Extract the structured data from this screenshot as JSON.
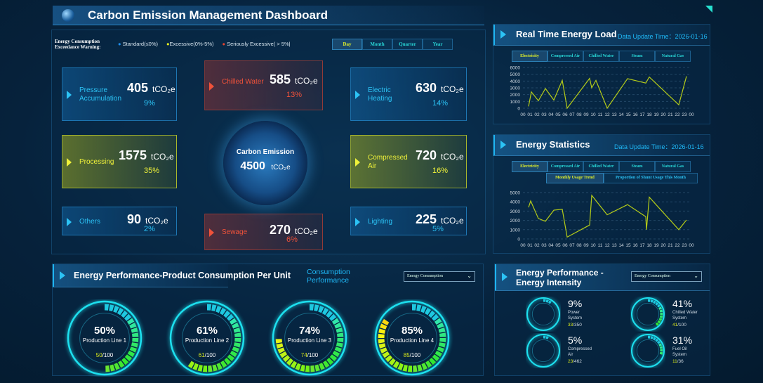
{
  "title": "Carbon Emission Management Dashboard",
  "warning": {
    "label_line1": "Energy Consumption",
    "label_line2": "Exceedance Warning:",
    "legend": [
      {
        "label": "Standard(≤0%)",
        "color": "#1e8ff0"
      },
      {
        "label": "Excessive(0%-5%)",
        "color": "#e8f01e"
      },
      {
        "label": "Seriously Excessive( > 5%|",
        "color": "#e8432e"
      }
    ]
  },
  "period_tabs": [
    {
      "label": "Day",
      "active": true
    },
    {
      "label": "Month"
    },
    {
      "label": "Quarter"
    },
    {
      "label": "Year"
    }
  ],
  "kpis": [
    {
      "label": "Pressure Accumulation",
      "value": "405",
      "unit": "tCO₂e",
      "pct": "9%",
      "status": "standard"
    },
    {
      "label": "Chilled Water",
      "value": "585",
      "unit": "tCO₂e",
      "pct": "13%",
      "status": "serious"
    },
    {
      "label": "Electric Heating",
      "value": "630",
      "unit": "tCO₂e",
      "pct": "14%",
      "status": "standard"
    },
    {
      "label": "Processing",
      "value": "1575",
      "unit": "tCO₂e",
      "pct": "35%",
      "status": "excessive"
    },
    {
      "label": "Compressed Air",
      "value": "720",
      "unit": "tCO₂e",
      "pct": "16%",
      "status": "excessive"
    },
    {
      "label": "Others",
      "value": "90",
      "unit": "tCO₂e",
      "pct": "2%",
      "status": "standard"
    },
    {
      "label": "Sewage",
      "value": "270",
      "unit": "tCO₂e",
      "pct": "6%",
      "status": "serious"
    },
    {
      "label": "Lighting",
      "value": "225",
      "unit": "tCO₂e",
      "pct": "5%",
      "status": "standard"
    }
  ],
  "center": {
    "label": "Carbon Emission",
    "value": "4500",
    "unit": "tCO₂e"
  },
  "energy_tabs": [
    "Electricity",
    "Compressed Air",
    "Chilled Water",
    "Steam",
    "Natural Gas"
  ],
  "realtime": {
    "title": "Real Time Energy Load",
    "update": "Data Update Time：2026-01-16"
  },
  "stats": {
    "title": "Energy Statistics",
    "update": "Data Update Time：2026-01-16",
    "subtabs": [
      "Monthly Usage Trend",
      "Proportion of Shunt Usage This Month"
    ]
  },
  "chart_data": [
    {
      "type": "line",
      "x_ticks": [
        "00",
        "01",
        "02",
        "03",
        "04",
        "05",
        "06",
        "07",
        "08",
        "09",
        "10",
        "11",
        "12",
        "13",
        "14",
        "15",
        "16",
        "17",
        "18",
        "19",
        "20",
        "21",
        "22",
        "23",
        "00"
      ],
      "yticks": [
        0,
        1000,
        2000,
        3000,
        4000,
        5000,
        6000
      ],
      "ylim": [
        0,
        6000
      ],
      "grid": true,
      "color": "#b5cc18",
      "x": [
        0.8,
        1.2,
        2.2,
        3.2,
        4.4,
        5.6,
        6.3,
        9.5,
        9.8,
        10.4,
        12,
        14.9,
        17.5,
        18,
        22.2,
        23.3
      ],
      "y": [
        270,
        2400,
        1100,
        2900,
        1200,
        4100,
        0,
        4400,
        3000,
        4100,
        0,
        4350,
        3700,
        4600,
        500,
        4700
      ]
    },
    {
      "type": "line",
      "x_ticks": [
        "00",
        "01",
        "02",
        "03",
        "04",
        "05",
        "06",
        "07",
        "08",
        "09",
        "10",
        "11",
        "12",
        "13",
        "14",
        "15",
        "16",
        "17",
        "18",
        "19",
        "20",
        "21",
        "22",
        "23",
        "00"
      ],
      "yticks": [
        0,
        1000,
        2000,
        3000,
        4000,
        5000
      ],
      "ylim": [
        0,
        5000
      ],
      "grid": true,
      "color": "#b5cc18",
      "x": [
        0.8,
        1.1,
        2.2,
        3.2,
        4.4,
        5.6,
        6.3,
        9.5,
        9.8,
        12,
        14.9,
        17.5,
        17.6,
        18,
        22.2,
        23.3
      ],
      "y": [
        3400,
        4100,
        2200,
        1900,
        3100,
        3200,
        200,
        1500,
        4700,
        2600,
        3700,
        2400,
        1000,
        4500,
        1000,
        2050
      ]
    }
  ],
  "perf": {
    "title": "Energy Performance-Product Consumption Per Unit",
    "link": "Consumption Performance",
    "select": "Energy Consumption",
    "gauges": [
      {
        "pct": "50%",
        "label": "Production Line 1",
        "value": "50",
        "total": "/100",
        "fraction": 0.5
      },
      {
        "pct": "61%",
        "label": "Production Line 2",
        "value": "61",
        "total": "/100",
        "fraction": 0.61
      },
      {
        "pct": "74%",
        "label": "Production Line 3",
        "value": "74",
        "total": "/100",
        "fraction": 0.74
      },
      {
        "pct": "85%",
        "label": "Production Line 4",
        "value": "85",
        "total": "/100",
        "fraction": 0.85
      }
    ]
  },
  "intensity": {
    "title1": "Energy Performance -",
    "title2": "Energy Intensity",
    "select": "Energy Consumption",
    "items": [
      {
        "pct": "9%",
        "label1": "Power",
        "label2": "System",
        "value": "33",
        "total": "/350",
        "fraction": 0.09
      },
      {
        "pct": "41%",
        "label1": "Chilled Water",
        "label2": "System",
        "value": "41",
        "total": "/100",
        "fraction": 0.41
      },
      {
        "pct": "5%",
        "label1": "Compressed",
        "label2": "Air",
        "value": "23",
        "total": "/462",
        "fraction": 0.05
      },
      {
        "pct": "31%",
        "label1": "Fuel Oil",
        "label2": "System",
        "value": "11",
        "total": "/36",
        "fraction": 0.31
      }
    ]
  }
}
